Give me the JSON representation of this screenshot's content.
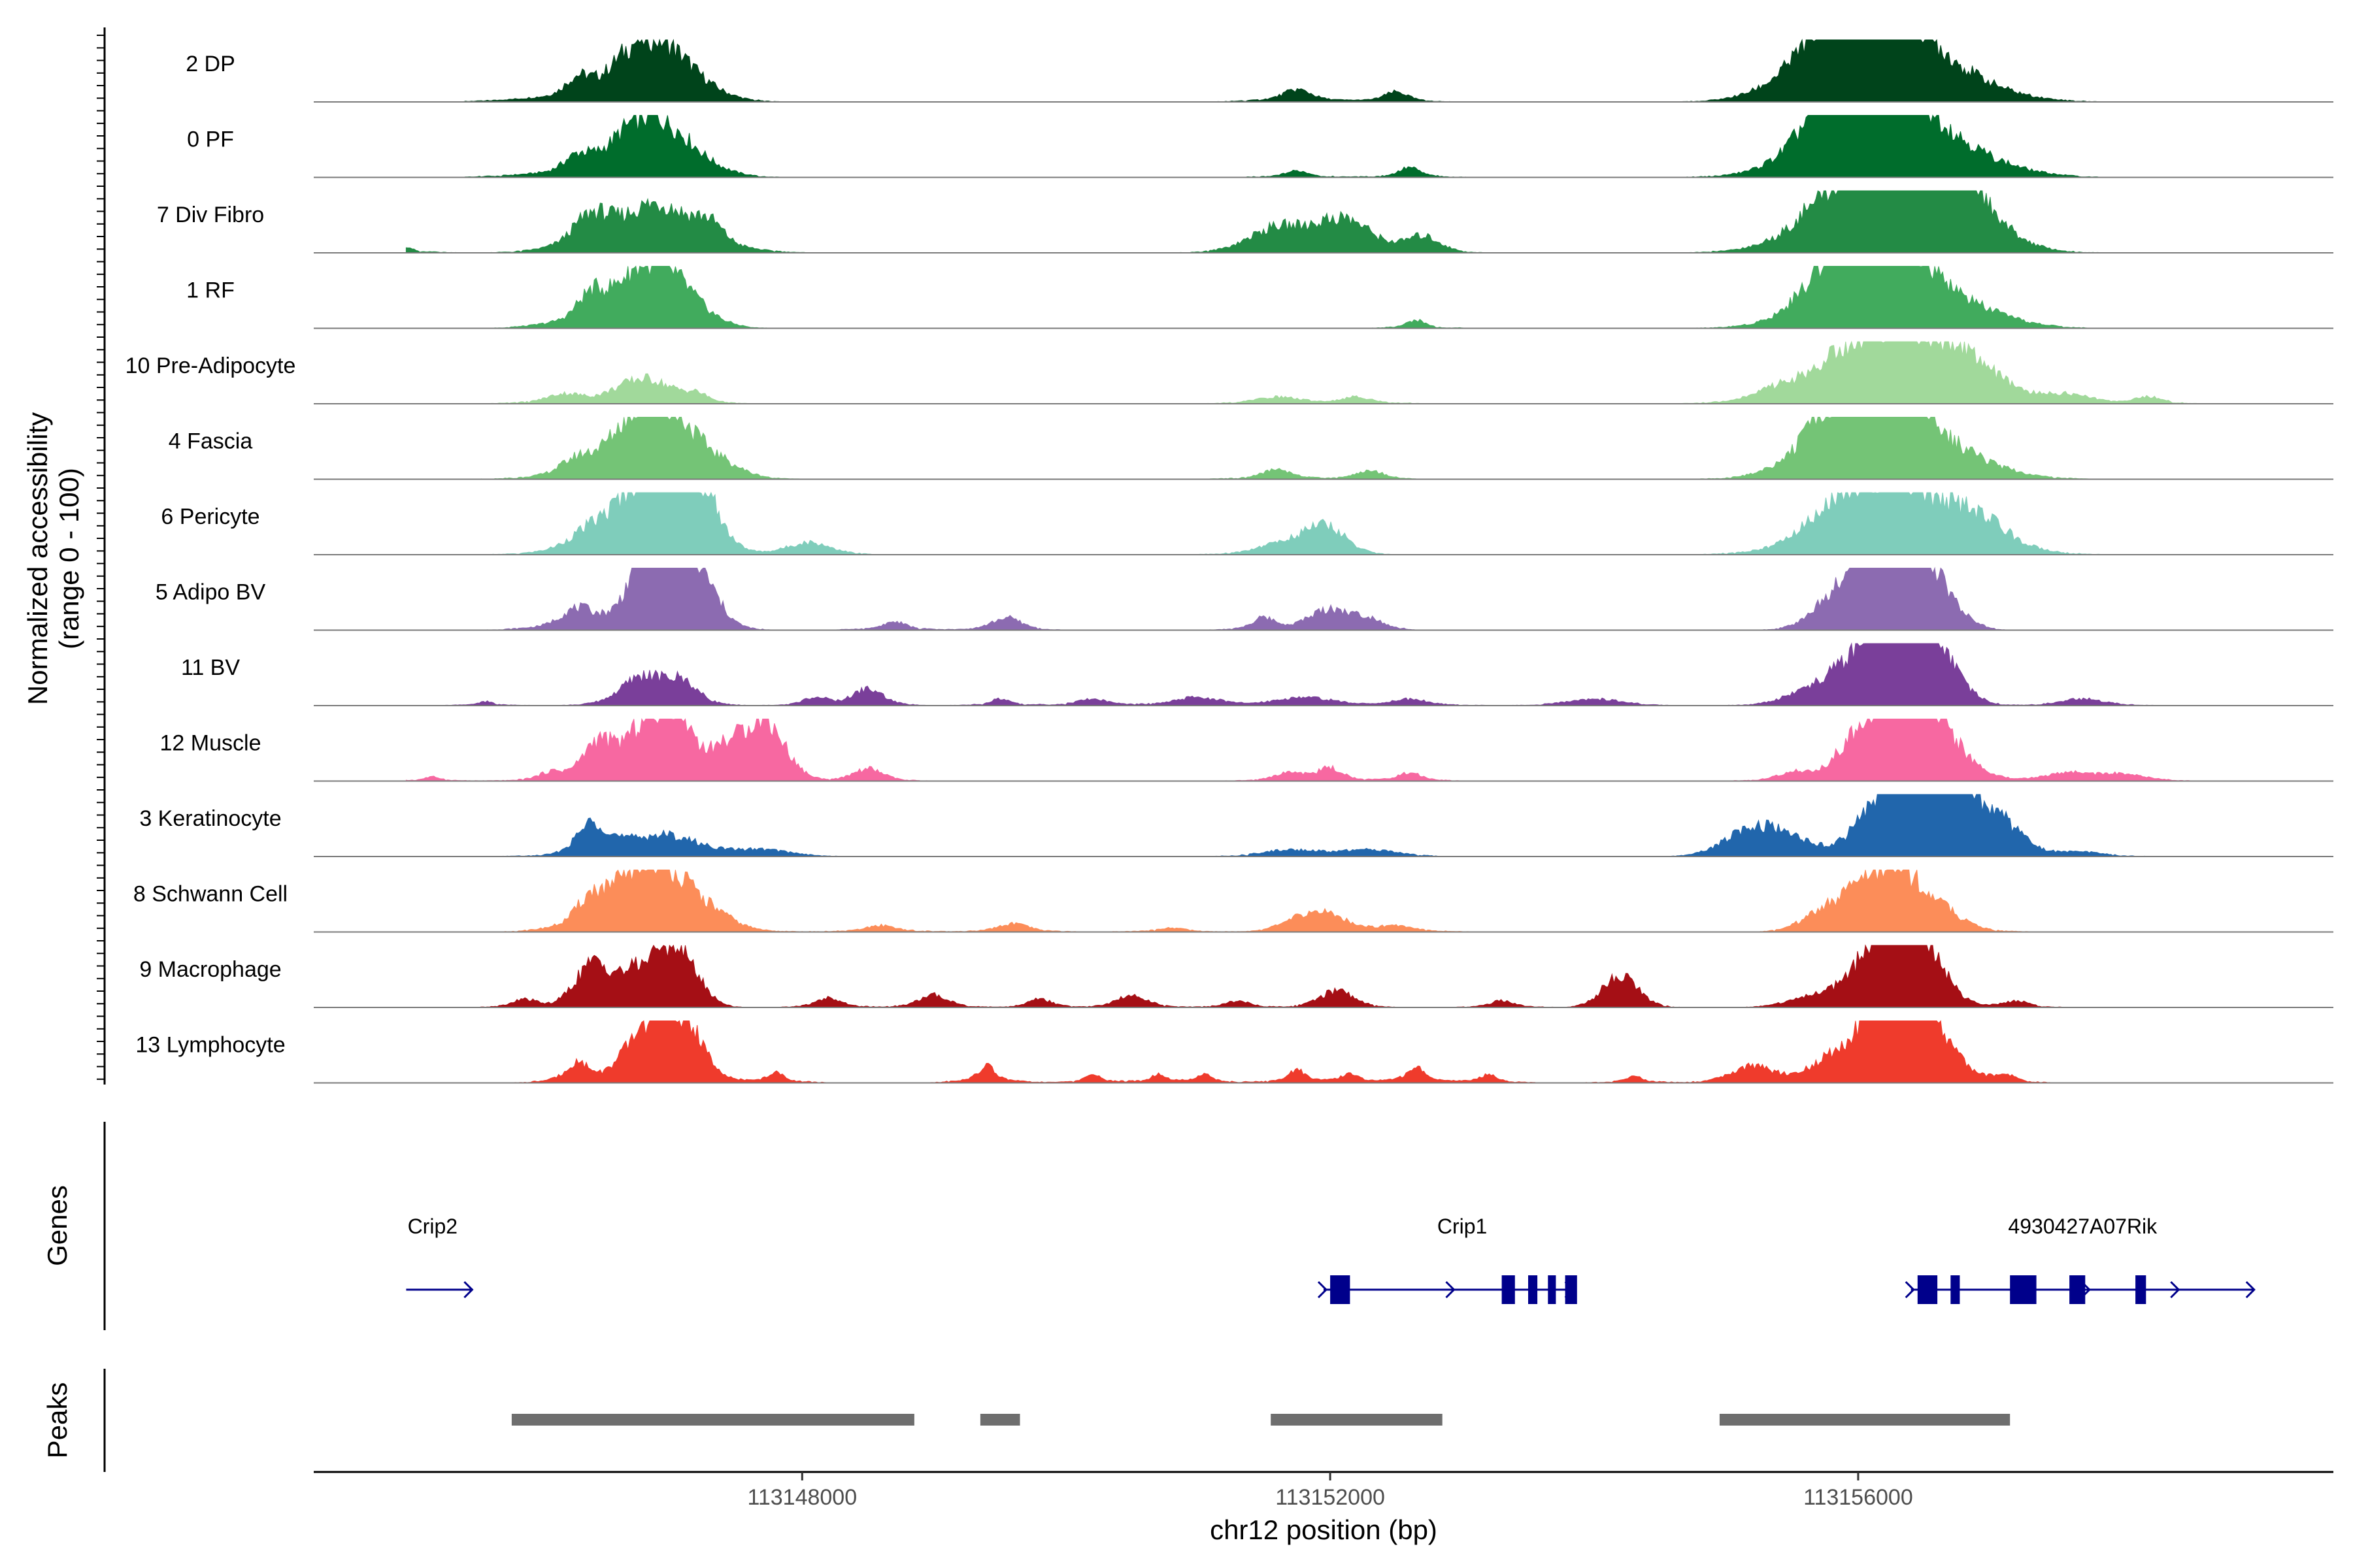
{
  "chart_data": {
    "type": "area",
    "title": "",
    "ylabel_lines": [
      "Normalized accessibility",
      "(range 0 - 100)"
    ],
    "genes_label": "Genes",
    "peaks_label": "Peaks",
    "xlabel": "chr12 position (bp)",
    "xlim": [
      144300,
      159600
    ],
    "x_ticks": [
      148000,
      152000,
      156000
    ],
    "x_tick_labels": [
      "113148000",
      "113152000",
      "113156000"
    ],
    "ylim": [
      0,
      100
    ],
    "tracks": [
      {
        "name": "2 DP",
        "color": "#00441b",
        "peaks": [
          [
            146300,
            90,
            400,
            25
          ],
          [
            146950,
            280,
            170,
            60
          ],
          [
            146700,
            160,
            350,
            30
          ],
          [
            151750,
            100,
            300,
            15
          ],
          [
            152500,
            80,
            200,
            12
          ],
          [
            155800,
            350,
            170,
            50
          ],
          [
            156300,
            480,
            200,
            95
          ],
          [
            156000,
            250,
            300,
            40
          ]
        ]
      },
      {
        "name": "0 PF",
        "color": "#006d2c",
        "peaks": [
          [
            146300,
            100,
            400,
            22
          ],
          [
            146950,
            280,
            180,
            55
          ],
          [
            146700,
            170,
            350,
            30
          ],
          [
            151750,
            80,
            250,
            8
          ],
          [
            152600,
            70,
            200,
            12
          ],
          [
            155850,
            300,
            200,
            45
          ],
          [
            156300,
            500,
            250,
            95
          ],
          [
            156000,
            250,
            300,
            40
          ]
        ]
      },
      {
        "name": "7 Div Fibro",
        "color": "#238b45",
        "peaks": [
          [
            145000,
            40,
            200,
            8
          ],
          [
            146400,
            130,
            300,
            40
          ],
          [
            146900,
            240,
            350,
            55
          ],
          [
            147300,
            100,
            300,
            25
          ],
          [
            151600,
            200,
            300,
            30
          ],
          [
            152100,
            200,
            250,
            40
          ],
          [
            152700,
            120,
            200,
            20
          ],
          [
            156150,
            450,
            150,
            90
          ],
          [
            156450,
            400,
            200,
            95
          ],
          [
            156700,
            250,
            350,
            35
          ],
          [
            155700,
            150,
            300,
            15
          ]
        ]
      },
      {
        "name": "1 RF",
        "color": "#41ab5d",
        "peaks": [
          [
            146400,
            100,
            300,
            35
          ],
          [
            146950,
            250,
            170,
            65
          ],
          [
            146700,
            150,
            350,
            30
          ],
          [
            152650,
            60,
            200,
            10
          ],
          [
            155850,
            250,
            200,
            35
          ],
          [
            156300,
            480,
            200,
            90
          ],
          [
            156000,
            250,
            300,
            35
          ]
        ]
      },
      {
        "name": "10 Pre-Adipocyte",
        "color": "#a1d99b",
        "peaks": [
          [
            146200,
            120,
            300,
            12
          ],
          [
            146800,
            200,
            250,
            30
          ],
          [
            147200,
            80,
            200,
            10
          ],
          [
            151600,
            150,
            300,
            8
          ],
          [
            152200,
            100,
            300,
            8
          ],
          [
            155400,
            150,
            300,
            10
          ],
          [
            155900,
            150,
            300,
            18
          ],
          [
            156300,
            500,
            200,
            95
          ],
          [
            156800,
            200,
            300,
            25
          ],
          [
            157600,
            150,
            300,
            10
          ],
          [
            158200,
            100,
            200,
            8
          ]
        ]
      },
      {
        "name": "4 Fascia",
        "color": "#74c476",
        "peaks": [
          [
            146300,
            120,
            300,
            20
          ],
          [
            146950,
            270,
            170,
            80
          ],
          [
            146700,
            170,
            350,
            35
          ],
          [
            147400,
            150,
            300,
            10
          ],
          [
            151600,
            100,
            250,
            12
          ],
          [
            152300,
            100,
            200,
            10
          ],
          [
            155850,
            300,
            200,
            40
          ],
          [
            156300,
            460,
            200,
            90
          ],
          [
            156050,
            250,
            300,
            35
          ]
        ]
      },
      {
        "name": "6 Pericyte",
        "color": "#7fcdbb",
        "peaks": [
          [
            146400,
            150,
            300,
            25
          ],
          [
            146950,
            240,
            170,
            95
          ],
          [
            147250,
            120,
            200,
            50
          ],
          [
            146700,
            150,
            350,
            30
          ],
          [
            148050,
            150,
            250,
            15
          ],
          [
            151950,
            150,
            200,
            35
          ],
          [
            151600,
            150,
            300,
            12
          ],
          [
            155900,
            250,
            200,
            35
          ],
          [
            156300,
            480,
            200,
            85
          ],
          [
            156900,
            200,
            300,
            25
          ]
        ]
      },
      {
        "name": "5 Adipo BV",
        "color": "#8c6bb1",
        "peaks": [
          [
            146300,
            120,
            300,
            25
          ],
          [
            146800,
            100,
            300,
            30
          ],
          [
            146950,
            200,
            170,
            100
          ],
          [
            147250,
            120,
            200,
            40
          ],
          [
            148700,
            80,
            250,
            10
          ],
          [
            149550,
            100,
            200,
            15
          ],
          [
            151500,
            80,
            200,
            15
          ],
          [
            152000,
            150,
            200,
            25
          ],
          [
            152300,
            100,
            200,
            12
          ],
          [
            155800,
            150,
            200,
            25
          ],
          [
            156200,
            200,
            170,
            100
          ],
          [
            156500,
            200,
            200,
            70
          ],
          [
            156000,
            150,
            300,
            30
          ]
        ]
      },
      {
        "name": "11 BV",
        "color": "#7a3f9a",
        "peaks": [
          [
            145600,
            50,
            200,
            5
          ],
          [
            146800,
            150,
            250,
            35
          ],
          [
            147100,
            100,
            200,
            25
          ],
          [
            148100,
            80,
            200,
            10
          ],
          [
            148500,
            100,
            200,
            20
          ],
          [
            149500,
            60,
            200,
            8
          ],
          [
            150200,
            100,
            300,
            8
          ],
          [
            151000,
            150,
            300,
            10
          ],
          [
            151800,
            200,
            300,
            10
          ],
          [
            152600,
            120,
            300,
            8
          ],
          [
            154000,
            200,
            300,
            8
          ],
          [
            155600,
            150,
            300,
            15
          ],
          [
            155900,
            150,
            200,
            30
          ],
          [
            156300,
            200,
            170,
            95
          ],
          [
            156550,
            200,
            200,
            55
          ],
          [
            156150,
            150,
            300,
            35
          ],
          [
            157700,
            150,
            300,
            8
          ]
        ]
      },
      {
        "name": "12 Muscle",
        "color": "#f768a1",
        "peaks": [
          [
            145200,
            60,
            200,
            5
          ],
          [
            146100,
            80,
            250,
            8
          ],
          [
            146450,
            100,
            250,
            45
          ],
          [
            146800,
            150,
            200,
            55
          ],
          [
            147050,
            120,
            200,
            75
          ],
          [
            147400,
            100,
            200,
            30
          ],
          [
            147700,
            150,
            200,
            75
          ],
          [
            148500,
            100,
            200,
            15
          ],
          [
            151700,
            100,
            250,
            10
          ],
          [
            152000,
            80,
            200,
            15
          ],
          [
            152600,
            80,
            200,
            10
          ],
          [
            155500,
            100,
            250,
            10
          ],
          [
            155900,
            100,
            250,
            15
          ],
          [
            156250,
            250,
            200,
            95
          ],
          [
            156500,
            180,
            200,
            60
          ],
          [
            156800,
            150,
            300,
            15
          ],
          [
            157600,
            150,
            300,
            10
          ],
          [
            158000,
            150,
            300,
            8
          ]
        ]
      },
      {
        "name": "3 Keratinocyte",
        "color": "#2166ac",
        "peaks": [
          [
            146400,
            100,
            150,
            30
          ],
          [
            146950,
            250,
            350,
            25
          ],
          [
            146500,
            150,
            400,
            10
          ],
          [
            147700,
            200,
            300,
            8
          ],
          [
            151700,
            200,
            300,
            8
          ],
          [
            152300,
            200,
            300,
            8
          ],
          [
            155200,
            200,
            250,
            30
          ],
          [
            155500,
            200,
            300,
            15
          ],
          [
            156200,
            200,
            200,
            55
          ],
          [
            156500,
            250,
            150,
            80
          ],
          [
            156800,
            250,
            250,
            50
          ],
          [
            157100,
            150,
            300,
            20
          ],
          [
            157700,
            150,
            300,
            5
          ]
        ]
      },
      {
        "name": "8 Schwann Cell",
        "color": "#fc8d59",
        "peaks": [
          [
            146400,
            100,
            250,
            35
          ],
          [
            146950,
            250,
            170,
            70
          ],
          [
            146700,
            150,
            350,
            35
          ],
          [
            147350,
            150,
            300,
            12
          ],
          [
            148600,
            100,
            300,
            8
          ],
          [
            149600,
            100,
            250,
            10
          ],
          [
            150800,
            100,
            300,
            5
          ],
          [
            151900,
            200,
            200,
            25
          ],
          [
            152500,
            120,
            300,
            8
          ],
          [
            155800,
            200,
            200,
            25
          ],
          [
            156250,
            250,
            180,
            80
          ],
          [
            156650,
            150,
            300,
            15
          ]
        ]
      },
      {
        "name": "9 Macrophage",
        "color": "#a50f15",
        "peaks": [
          [
            145900,
            80,
            200,
            10
          ],
          [
            146400,
            120,
            170,
            45
          ],
          [
            146750,
            200,
            200,
            40
          ],
          [
            147050,
            150,
            170,
            65
          ],
          [
            148200,
            80,
            200,
            12
          ],
          [
            149000,
            100,
            200,
            15
          ],
          [
            149800,
            80,
            200,
            10
          ],
          [
            150500,
            100,
            200,
            15
          ],
          [
            151300,
            80,
            200,
            8
          ],
          [
            152050,
            120,
            200,
            20
          ],
          [
            153300,
            80,
            200,
            8
          ],
          [
            154200,
            120,
            170,
            40
          ],
          [
            155600,
            150,
            250,
            10
          ],
          [
            155900,
            150,
            200,
            15
          ],
          [
            156250,
            200,
            170,
            100
          ],
          [
            156450,
            150,
            200,
            50
          ],
          [
            156650,
            100,
            250,
            15
          ],
          [
            157200,
            80,
            200,
            8
          ]
        ]
      },
      {
        "name": "13 Lymphocyte",
        "color": "#ef3b2c",
        "peaks": [
          [
            146300,
            80,
            200,
            25
          ],
          [
            146800,
            150,
            200,
            55
          ],
          [
            147000,
            100,
            170,
            70
          ],
          [
            147200,
            80,
            200,
            45
          ],
          [
            147800,
            60,
            200,
            12
          ],
          [
            149400,
            60,
            200,
            20
          ],
          [
            150200,
            50,
            200,
            10
          ],
          [
            150700,
            50,
            200,
            10
          ],
          [
            151050,
            50,
            200,
            10
          ],
          [
            151750,
            60,
            200,
            15
          ],
          [
            152150,
            60,
            200,
            10
          ],
          [
            152650,
            60,
            200,
            20
          ],
          [
            153200,
            60,
            200,
            10
          ],
          [
            154300,
            60,
            200,
            8
          ],
          [
            155200,
            150,
            250,
            20
          ],
          [
            155800,
            150,
            250,
            30
          ],
          [
            156150,
            150,
            170,
            60
          ],
          [
            156300,
            150,
            170,
            100
          ],
          [
            156500,
            120,
            200,
            70
          ],
          [
            156750,
            100,
            200,
            20
          ],
          [
            157100,
            80,
            200,
            10
          ]
        ]
      }
    ],
    "genes": [
      {
        "name": "Crip2",
        "label_x": 145200,
        "start": 145000,
        "end": 145500,
        "strand": "+",
        "exons": []
      },
      {
        "name": "Crip1",
        "label_x": 153000,
        "start": 151950,
        "end": 153850,
        "strand": "+",
        "exons": [
          [
            152000,
            152150
          ],
          [
            153300,
            153400
          ],
          [
            153500,
            153570
          ],
          [
            153650,
            153710
          ],
          [
            153780,
            153870
          ]
        ]
      },
      {
        "name": "4930427A07Rik",
        "label_x": 157700,
        "start": 156400,
        "end": 159000,
        "strand": "+",
        "exons": [
          [
            156450,
            156600
          ],
          [
            156700,
            156770
          ],
          [
            157150,
            157350
          ],
          [
            157600,
            157720
          ],
          [
            158100,
            158180
          ]
        ]
      }
    ],
    "peaks_regions": [
      [
        145800,
        148850
      ],
      [
        149350,
        149650
      ],
      [
        151550,
        152850
      ],
      [
        154950,
        157150
      ]
    ]
  }
}
